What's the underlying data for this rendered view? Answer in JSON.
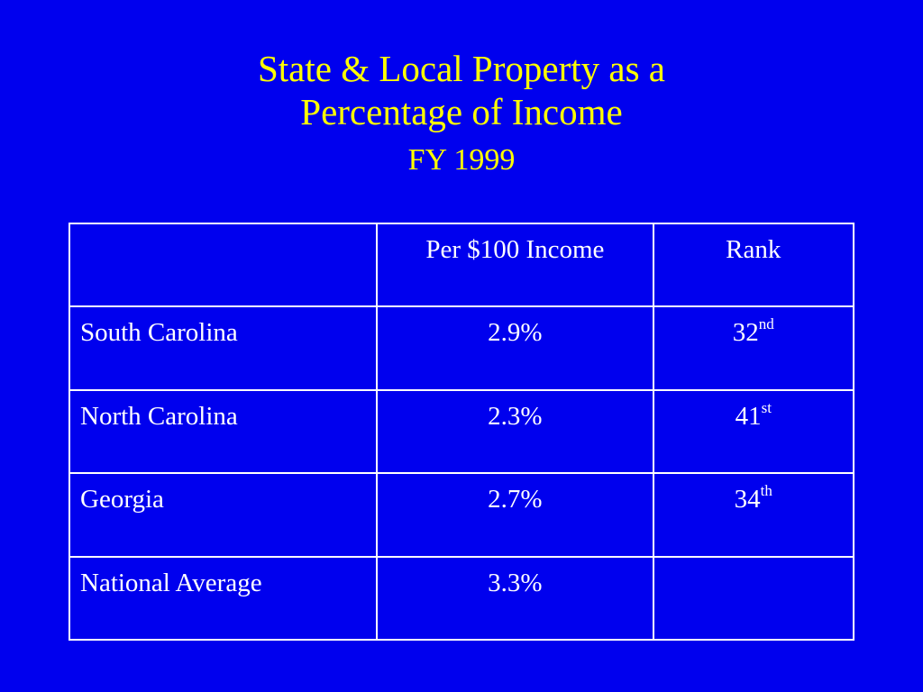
{
  "slide": {
    "title_line1": "State & Local Property as a",
    "title_line2": "Percentage of Income",
    "subtitle": "FY 1999",
    "title_color": "#ffff00",
    "background_color": "#0000ee"
  },
  "table": {
    "headers": [
      "",
      "Per $100 Income",
      "Rank"
    ],
    "rows": [
      {
        "label": "South Carolina",
        "value": "2.9%",
        "rank_number": "32",
        "rank_suffix": "nd"
      },
      {
        "label": "North Carolina",
        "value": "2.3%",
        "rank_number": "41",
        "rank_suffix": "st"
      },
      {
        "label": "Georgia",
        "value": "2.7%",
        "rank_number": "34",
        "rank_suffix": "th"
      },
      {
        "label": "National Average",
        "value": "3.3%",
        "rank_number": "",
        "rank_suffix": ""
      }
    ]
  }
}
